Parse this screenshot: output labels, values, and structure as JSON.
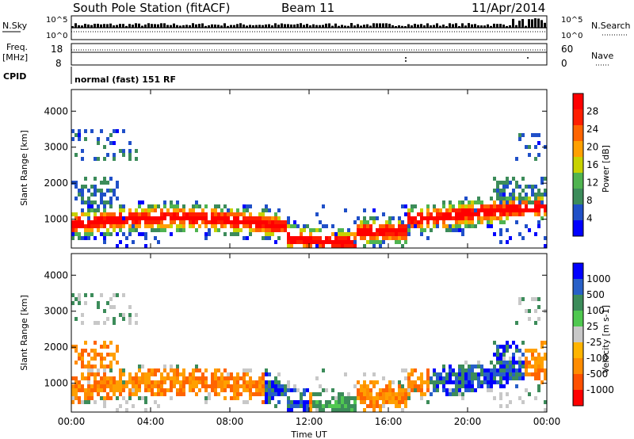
{
  "header": {
    "station": "South Pole Station (fitACF)",
    "beam": "Beam 11",
    "date": "11/Apr/2014"
  },
  "strip_panels": {
    "nsky": {
      "label": "N.Sky",
      "ticks": [
        "10^5",
        "10^0"
      ]
    },
    "nsearch": {
      "label": "N.Search",
      "ticks": [
        "10^5",
        "10^0"
      ]
    },
    "freq": {
      "label_line1": "Freq.",
      "label_line2": "[MHz]",
      "ticks": [
        "18",
        "8"
      ]
    },
    "nave": {
      "label": "Nave",
      "ticks": [
        "60",
        "0"
      ]
    },
    "cpid": {
      "label": "CPID",
      "value": "normal (fast) 151 RF"
    }
  },
  "chart_data": [
    {
      "type": "heatmap",
      "name": "power",
      "xlabel": "",
      "ylabel": "Slant Range [km]",
      "x_range": [
        "00:00",
        "24:00"
      ],
      "y_range": [
        200,
        4600
      ],
      "y_ticks": [
        1000,
        2000,
        3000,
        4000
      ],
      "colorbar": {
        "label": "Power [dB]",
        "ticks": [
          "4",
          "8",
          "12",
          "16",
          "20",
          "24",
          "28"
        ],
        "colors": [
          "#0000ff",
          "#2050c8",
          "#3c8c5a",
          "#50b450",
          "#c8d200",
          "#ffa000",
          "#ff6400",
          "#ff1e00",
          "#ff0000"
        ]
      }
    },
    {
      "type": "heatmap",
      "name": "velocity",
      "xlabel": "Time UT",
      "ylabel": "Slant Range [km]",
      "x_range": [
        "00:00",
        "24:00"
      ],
      "x_ticks": [
        "00:00",
        "04:00",
        "08:00",
        "12:00",
        "16:00",
        "20:00",
        "00:00"
      ],
      "y_range": [
        200,
        4600
      ],
      "y_ticks": [
        1000,
        2000,
        3000,
        4000
      ],
      "colorbar": {
        "label": "Velocity [m s-1]",
        "ticks": [
          "1000",
          "500",
          "100",
          "25",
          "-25",
          "-100",
          "-500",
          "-1000"
        ],
        "colors": [
          "#0000ff",
          "#2860c8",
          "#3c8c5a",
          "#50c850",
          "#c8c8c8",
          "#ffb400",
          "#ff8c00",
          "#ff5000",
          "#ff0000"
        ]
      }
    }
  ]
}
